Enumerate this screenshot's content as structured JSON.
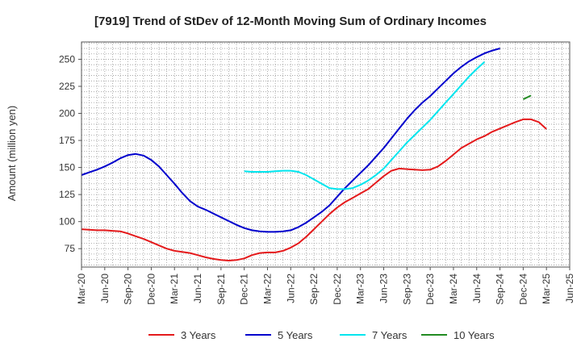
{
  "chart_data": {
    "type": "line",
    "title": "[7919]  Trend of StDev of 12-Month Moving Sum of Ordinary Incomes",
    "ylabel": "Amount (million yen)",
    "xlabel": "",
    "ylim": [
      58,
      266
    ],
    "yticks": [
      75,
      100,
      125,
      150,
      175,
      200,
      225,
      250
    ],
    "xticks": [
      "Mar-20",
      "Jun-20",
      "Sep-20",
      "Dec-20",
      "Mar-21",
      "Jun-21",
      "Sep-21",
      "Dec-21",
      "Mar-22",
      "Jun-22",
      "Sep-22",
      "Dec-22",
      "Mar-23",
      "Jun-23",
      "Sep-23",
      "Dec-23",
      "Mar-24",
      "Jun-24",
      "Sep-24",
      "Dec-24",
      "Mar-25",
      "Jun-25"
    ],
    "grid": true,
    "legend_position": "bottom",
    "series": [
      {
        "name": "3 Years",
        "color": "#e41a1c",
        "start": "Mar-20",
        "values": [
          93,
          92.5,
          92,
          92,
          91.5,
          91,
          89,
          86.5,
          84,
          81,
          78,
          75,
          73,
          72,
          71,
          69,
          67,
          65.5,
          64.5,
          64,
          64.5,
          66,
          69,
          71,
          71.5,
          71.5,
          73,
          76,
          80,
          86,
          93,
          100,
          107,
          113,
          118,
          122,
          126,
          130,
          136,
          142,
          147,
          149,
          148.5,
          148,
          147.5,
          148,
          151,
          156,
          162,
          168,
          172,
          176,
          179,
          183,
          186,
          189,
          192,
          194.5,
          194.5,
          192,
          185.5
        ]
      },
      {
        "name": "5 Years",
        "color": "#0000cd",
        "start": "Mar-20",
        "values": [
          143,
          145.5,
          148,
          151,
          154.5,
          158.5,
          161.5,
          162.5,
          161,
          157,
          151,
          143,
          135,
          126.5,
          119,
          114,
          111,
          107.5,
          104,
          100.5,
          97,
          94,
          92,
          91,
          90.5,
          90.5,
          91,
          92,
          95,
          99,
          104,
          109,
          115,
          123,
          131,
          138,
          145,
          152,
          160,
          168,
          177,
          186,
          195,
          203,
          210,
          216,
          223,
          230,
          237,
          243,
          248,
          252,
          255.5,
          258,
          260
        ]
      },
      {
        "name": "7 Years",
        "color": "#00e5ee",
        "start": "Dec-21",
        "values": [
          146.5,
          146,
          146,
          146,
          146.5,
          147,
          147,
          146,
          143,
          139,
          135,
          131,
          130,
          130,
          131,
          134,
          138,
          143,
          149,
          157,
          165,
          173,
          180,
          187,
          194,
          202,
          210,
          218,
          226,
          234,
          241,
          247.5
        ]
      },
      {
        "name": "10 Years",
        "color": "#228b22",
        "start": "Dec-24",
        "values": [
          213,
          216.5
        ]
      }
    ]
  }
}
